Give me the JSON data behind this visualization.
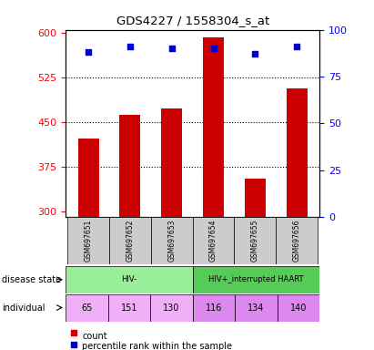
{
  "title": "GDS4227 / 1558304_s_at",
  "samples": [
    "GSM697651",
    "GSM697652",
    "GSM697653",
    "GSM697654",
    "GSM697655",
    "GSM697656"
  ],
  "counts": [
    422,
    462,
    472,
    592,
    355,
    507
  ],
  "percentile_ranks": [
    88,
    91,
    90,
    90,
    87,
    91
  ],
  "ylim_left": [
    290,
    605
  ],
  "ylim_right": [
    0,
    100
  ],
  "yticks_left": [
    300,
    375,
    450,
    525,
    600
  ],
  "yticks_right": [
    0,
    25,
    50,
    75,
    100
  ],
  "bar_color": "#cc0000",
  "dot_color": "#0000cc",
  "disease_groups": [
    {
      "label": "HIV-",
      "start": 0,
      "end": 3,
      "color": "#99ee99"
    },
    {
      "label": "HIV+_interrupted HAART",
      "start": 3,
      "end": 6,
      "color": "#55cc55"
    }
  ],
  "individuals": [
    "65",
    "151",
    "130",
    "116",
    "134",
    "140"
  ],
  "individual_colors": [
    "#f0b0f8",
    "#f0b0f8",
    "#f0b0f8",
    "#dd88ee",
    "#dd88ee",
    "#dd88ee"
  ],
  "row_label_disease": "disease state",
  "row_label_individual": "individual",
  "legend_count_label": "count",
  "legend_percentile_label": "percentile rank within the sample",
  "background_color": "#ffffff",
  "plot_bg_color": "#ffffff",
  "sample_bg_color": "#cccccc"
}
